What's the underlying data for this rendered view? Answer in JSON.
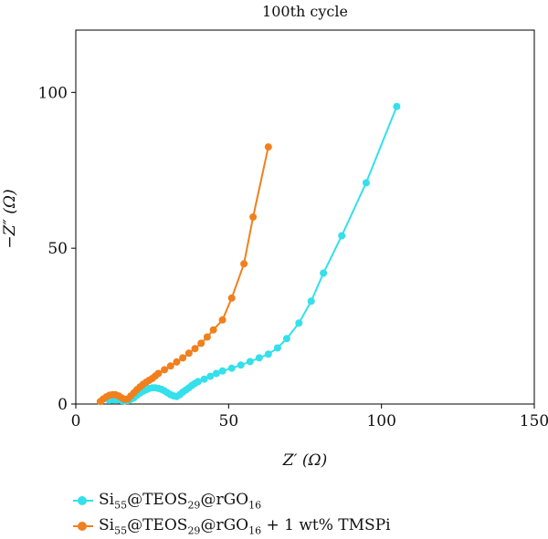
{
  "chart_data": {
    "type": "line",
    "title": "100th cycle",
    "xlabel": "Z′ (Ω)",
    "ylabel": "−Z″ (Ω)",
    "xlim": [
      0,
      150
    ],
    "ylim": [
      0,
      120
    ],
    "xticks": [
      0,
      50,
      100,
      150
    ],
    "yticks": [
      0,
      50,
      100
    ],
    "grid": false,
    "legend_position": "bottom",
    "series": [
      {
        "name": "Si55@TEOS29@rGO16",
        "name_parts": [
          {
            "t": "Si",
            "sub": false
          },
          {
            "t": "55",
            "sub": true
          },
          {
            "t": "@TEOS",
            "sub": false
          },
          {
            "t": "29",
            "sub": true
          },
          {
            "t": "@rGO",
            "sub": false
          },
          {
            "t": "16",
            "sub": true
          }
        ],
        "color": "#33e0eb",
        "x": [
          11,
          12,
          13,
          14,
          15,
          16,
          17,
          18,
          19,
          20,
          21,
          22,
          23,
          24,
          25,
          26,
          27,
          28,
          29,
          30,
          31,
          32,
          33,
          34,
          35,
          36,
          37,
          38,
          39,
          40,
          42,
          44,
          46,
          48,
          51,
          54,
          57,
          60,
          63,
          66,
          69,
          73,
          77,
          81,
          87,
          95,
          105
        ],
        "y": [
          1.2,
          1.3,
          1.4,
          1.3,
          1.1,
          1.0,
          1.1,
          1.5,
          2.0,
          2.8,
          3.5,
          4.1,
          4.6,
          5.0,
          5.2,
          5.2,
          5.0,
          4.7,
          4.2,
          3.6,
          3.0,
          2.6,
          2.4,
          3.0,
          3.8,
          4.5,
          5.2,
          6.0,
          6.6,
          7.2,
          8.0,
          8.9,
          9.8,
          10.6,
          11.5,
          12.5,
          13.6,
          14.8,
          16.0,
          18.0,
          21.0,
          26.0,
          33.0,
          42.0,
          54.0,
          71.0,
          95.5
        ]
      },
      {
        "name": "Si55@TEOS29@rGO16 + 1 wt% TMSPi",
        "name_parts": [
          {
            "t": "Si",
            "sub": false
          },
          {
            "t": "55",
            "sub": true
          },
          {
            "t": "@TEOS",
            "sub": false
          },
          {
            "t": "29",
            "sub": true
          },
          {
            "t": "@rGO",
            "sub": false
          },
          {
            "t": "16",
            "sub": true
          },
          {
            "t": " + 1 wt% TMSPi",
            "sub": false
          }
        ],
        "color": "#f0801e",
        "x": [
          8,
          9,
          10,
          11,
          12,
          13,
          14,
          15,
          16,
          17,
          18,
          19,
          20,
          21,
          22,
          23,
          24,
          25,
          26,
          27,
          29,
          31,
          33,
          35,
          37,
          39,
          41,
          43,
          45,
          48,
          51,
          55,
          58,
          63
        ],
        "y": [
          0.8,
          1.6,
          2.3,
          2.8,
          3.0,
          3.0,
          2.6,
          2.0,
          1.5,
          1.6,
          2.6,
          3.6,
          4.6,
          5.5,
          6.3,
          7.0,
          7.6,
          8.2,
          9.0,
          9.8,
          11.0,
          12.2,
          13.5,
          14.8,
          16.3,
          17.8,
          19.5,
          21.5,
          23.8,
          27.0,
          34.0,
          45.0,
          60.0,
          82.5
        ]
      }
    ]
  }
}
